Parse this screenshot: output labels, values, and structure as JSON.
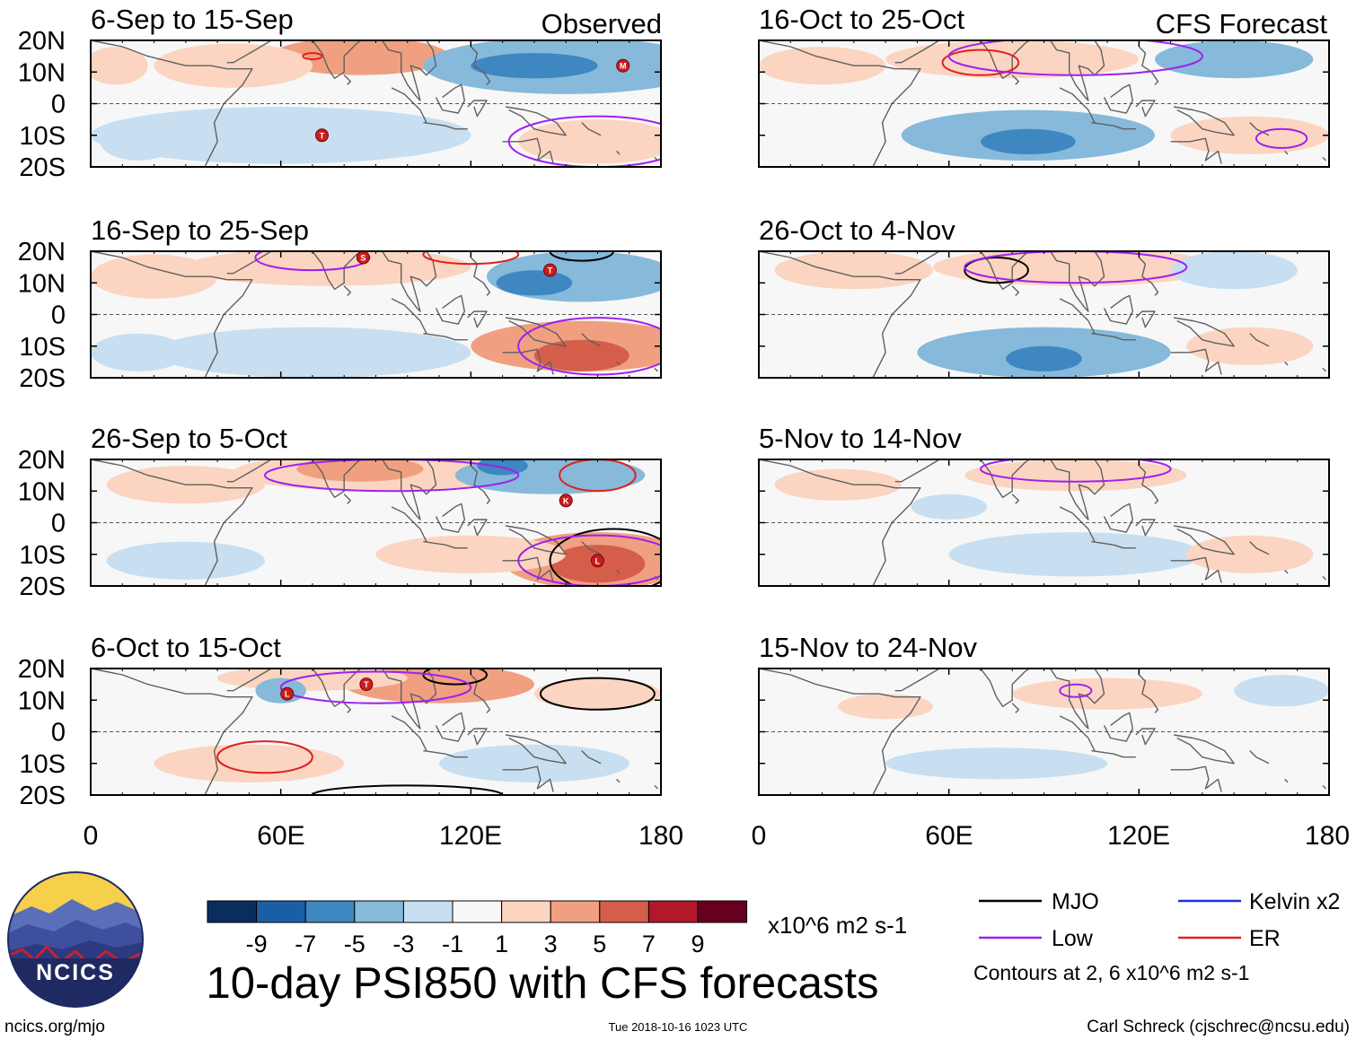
{
  "title": "10-day PSI850 with CFS forecasts",
  "source_url": "ncics.org/mjo",
  "logo_text": "NCICS",
  "timestamp": "Tue 2018-10-16 1023 UTC",
  "credit": "Carl Schreck (cjschrec@ncsu.edu)",
  "column_headers": {
    "observed": "Observed",
    "forecast": "CFS Forecast"
  },
  "colorbar": {
    "tick_labels": [
      "-9",
      "-7",
      "-5",
      "-3",
      "-1",
      "1",
      "3",
      "5",
      "7",
      "9"
    ],
    "colors": [
      "#0a2d5e",
      "#1a5ea6",
      "#3e87c0",
      "#86b9da",
      "#c7dff0",
      "#f7f7f7",
      "#fbd5c1",
      "#f0a080",
      "#d55e4b",
      "#b2182b",
      "#67001f"
    ],
    "units": "x10^6 m2 s-1"
  },
  "legend": {
    "items": [
      {
        "label": "MJO",
        "color": "#000000"
      },
      {
        "label": "Kelvin x2",
        "color": "#1c2fd6"
      },
      {
        "label": "Low",
        "color": "#a020f0"
      },
      {
        "label": "ER",
        "color": "#e0201e"
      }
    ],
    "contour_note": "Contours at 2, 6 x10^6 m2 s-1"
  },
  "chart_data": {
    "type": "heatmap",
    "variable": "PSI850",
    "xlim": [
      0,
      180
    ],
    "ylim": [
      -20,
      20
    ],
    "x_ticks": [
      0,
      60,
      120,
      180
    ],
    "x_tick_labels": [
      "0",
      "60E",
      "120E",
      "180"
    ],
    "y_ticks": [
      20,
      10,
      0,
      -10,
      -20
    ],
    "y_tick_labels": [
      "20N",
      "10N",
      "0",
      "10S",
      "20S"
    ],
    "panels": [
      {
        "id": "p1",
        "title": "6-Sep to 15-Sep",
        "type": "observed",
        "column": 0,
        "row": 0,
        "anomalies": [
          {
            "lon": 85,
            "lat": 15,
            "rx": 28,
            "ry": 6,
            "level": 7
          },
          {
            "lon": 45,
            "lat": 12,
            "rx": 25,
            "ry": 7,
            "level": 6
          },
          {
            "lon": 8,
            "lat": 12,
            "rx": 10,
            "ry": 6,
            "level": 6
          },
          {
            "lon": 150,
            "lat": 12,
            "rx": 45,
            "ry": 9,
            "level": 3
          },
          {
            "lon": 140,
            "lat": 12,
            "rx": 20,
            "ry": 4,
            "level": 2
          },
          {
            "lon": 60,
            "lat": -10,
            "rx": 60,
            "ry": 9,
            "level": 4
          },
          {
            "lon": 160,
            "lat": -12,
            "rx": 25,
            "ry": 7,
            "level": 6
          },
          {
            "lon": 15,
            "lat": -12,
            "rx": 12,
            "ry": 6,
            "level": 4
          }
        ],
        "contours": [
          {
            "kind": "ER",
            "lon": 70,
            "lat": 15,
            "rx": 3,
            "ry": 1
          },
          {
            "kind": "Low",
            "lon": 160,
            "lat": -12,
            "rx": 28,
            "ry": 8
          }
        ],
        "storms": [
          {
            "lon": 73,
            "lat": -10,
            "label": "T"
          },
          {
            "lon": 168,
            "lat": 12,
            "label": "M"
          }
        ]
      },
      {
        "id": "p2",
        "title": "16-Sep to 25-Sep",
        "type": "observed",
        "column": 0,
        "row": 1,
        "anomalies": [
          {
            "lon": 75,
            "lat": 15,
            "rx": 45,
            "ry": 6,
            "level": 6
          },
          {
            "lon": 20,
            "lat": 12,
            "rx": 20,
            "ry": 7,
            "level": 6
          },
          {
            "lon": 155,
            "lat": 12,
            "rx": 30,
            "ry": 8,
            "level": 3
          },
          {
            "lon": 140,
            "lat": 10,
            "rx": 12,
            "ry": 4,
            "level": 2
          },
          {
            "lon": 155,
            "lat": -10,
            "rx": 35,
            "ry": 8,
            "level": 7
          },
          {
            "lon": 155,
            "lat": -13,
            "rx": 15,
            "ry": 5,
            "level": 8
          },
          {
            "lon": 70,
            "lat": -12,
            "rx": 50,
            "ry": 8,
            "level": 4
          },
          {
            "lon": 15,
            "lat": -12,
            "rx": 15,
            "ry": 6,
            "level": 4
          }
        ],
        "contours": [
          {
            "kind": "ER",
            "lon": 120,
            "lat": 19,
            "rx": 15,
            "ry": 3
          },
          {
            "kind": "MJO",
            "lon": 155,
            "lat": 20,
            "rx": 10,
            "ry": 3
          },
          {
            "kind": "Low",
            "lon": 70,
            "lat": 18,
            "rx": 18,
            "ry": 4
          },
          {
            "kind": "Low",
            "lon": 160,
            "lat": -10,
            "rx": 25,
            "ry": 9
          }
        ],
        "storms": [
          {
            "lon": 86,
            "lat": 18,
            "label": "S"
          },
          {
            "lon": 145,
            "lat": 14,
            "label": "T"
          }
        ]
      },
      {
        "id": "p3",
        "title": "26-Sep to 5-Oct",
        "type": "observed",
        "column": 0,
        "row": 2,
        "anomalies": [
          {
            "lon": 90,
            "lat": 16,
            "rx": 45,
            "ry": 6,
            "level": 6
          },
          {
            "lon": 85,
            "lat": 17,
            "rx": 20,
            "ry": 4,
            "level": 7
          },
          {
            "lon": 30,
            "lat": 12,
            "rx": 25,
            "ry": 6,
            "level": 6
          },
          {
            "lon": 145,
            "lat": 15,
            "rx": 30,
            "ry": 6,
            "level": 3
          },
          {
            "lon": 130,
            "lat": 18,
            "rx": 8,
            "ry": 3,
            "level": 2
          },
          {
            "lon": 160,
            "lat": -12,
            "rx": 30,
            "ry": 9,
            "level": 7
          },
          {
            "lon": 160,
            "lat": -13,
            "rx": 15,
            "ry": 6,
            "level": 8
          },
          {
            "lon": 120,
            "lat": -10,
            "rx": 30,
            "ry": 6,
            "level": 6
          },
          {
            "lon": 30,
            "lat": -12,
            "rx": 25,
            "ry": 6,
            "level": 4
          }
        ],
        "contours": [
          {
            "kind": "Low",
            "lon": 95,
            "lat": 15,
            "rx": 40,
            "ry": 5
          },
          {
            "kind": "ER",
            "lon": 160,
            "lat": 15,
            "rx": 12,
            "ry": 5
          },
          {
            "kind": "MJO",
            "lon": 165,
            "lat": -12,
            "rx": 20,
            "ry": 10
          },
          {
            "kind": "Low",
            "lon": 160,
            "lat": -12,
            "rx": 25,
            "ry": 8
          }
        ],
        "storms": [
          {
            "lon": 150,
            "lat": 7,
            "label": "K"
          },
          {
            "lon": 160,
            "lat": -12,
            "label": "L"
          }
        ]
      },
      {
        "id": "p4",
        "title": "6-Oct to 15-Oct",
        "type": "observed",
        "column": 0,
        "row": 3,
        "anomalies": [
          {
            "lon": 110,
            "lat": 15,
            "rx": 30,
            "ry": 6,
            "level": 7
          },
          {
            "lon": 70,
            "lat": 17,
            "rx": 30,
            "ry": 4,
            "level": 6
          },
          {
            "lon": 60,
            "lat": 13,
            "rx": 8,
            "ry": 4,
            "level": 3
          },
          {
            "lon": 50,
            "lat": -10,
            "rx": 30,
            "ry": 6,
            "level": 6
          },
          {
            "lon": 140,
            "lat": -10,
            "rx": 30,
            "ry": 6,
            "level": 4
          },
          {
            "lon": 160,
            "lat": 12,
            "rx": 20,
            "ry": 5,
            "level": 6
          }
        ],
        "contours": [
          {
            "kind": "MJO",
            "lon": 115,
            "lat": 18,
            "rx": 10,
            "ry": 3
          },
          {
            "kind": "MJO",
            "lon": 160,
            "lat": 12,
            "rx": 18,
            "ry": 5
          },
          {
            "kind": "MJO",
            "lon": 100,
            "lat": -20,
            "rx": 30,
            "ry": 3
          },
          {
            "kind": "ER",
            "lon": 55,
            "lat": -8,
            "rx": 15,
            "ry": 5
          },
          {
            "kind": "Low",
            "lon": 90,
            "lat": 14,
            "rx": 30,
            "ry": 5
          }
        ],
        "storms": [
          {
            "lon": 62,
            "lat": 12,
            "label": "L"
          },
          {
            "lon": 87,
            "lat": 15,
            "label": "T"
          }
        ]
      },
      {
        "id": "p5",
        "title": "16-Oct to 25-Oct",
        "type": "forecast",
        "column": 1,
        "row": 0,
        "anomalies": [
          {
            "lon": 80,
            "lat": 14,
            "rx": 40,
            "ry": 6,
            "level": 6
          },
          {
            "lon": 20,
            "lat": 12,
            "rx": 20,
            "ry": 6,
            "level": 6
          },
          {
            "lon": 150,
            "lat": 14,
            "rx": 25,
            "ry": 6,
            "level": 3
          },
          {
            "lon": 85,
            "lat": -10,
            "rx": 40,
            "ry": 8,
            "level": 3
          },
          {
            "lon": 85,
            "lat": -12,
            "rx": 15,
            "ry": 4,
            "level": 2
          },
          {
            "lon": 155,
            "lat": -10,
            "rx": 25,
            "ry": 6,
            "level": 6
          }
        ],
        "contours": [
          {
            "kind": "ER",
            "lon": 70,
            "lat": 13,
            "rx": 12,
            "ry": 4
          },
          {
            "kind": "Low",
            "lon": 100,
            "lat": 15,
            "rx": 40,
            "ry": 6
          },
          {
            "kind": "Low",
            "lon": 165,
            "lat": -11,
            "rx": 8,
            "ry": 3
          }
        ],
        "storms": []
      },
      {
        "id": "p6",
        "title": "26-Oct to 4-Nov",
        "type": "forecast",
        "column": 1,
        "row": 1,
        "anomalies": [
          {
            "lon": 100,
            "lat": 15,
            "rx": 45,
            "ry": 6,
            "level": 6
          },
          {
            "lon": 30,
            "lat": 14,
            "rx": 25,
            "ry": 6,
            "level": 6
          },
          {
            "lon": 90,
            "lat": -12,
            "rx": 40,
            "ry": 8,
            "level": 3
          },
          {
            "lon": 90,
            "lat": -14,
            "rx": 12,
            "ry": 4,
            "level": 2
          },
          {
            "lon": 150,
            "lat": 14,
            "rx": 20,
            "ry": 6,
            "level": 4
          },
          {
            "lon": 155,
            "lat": -10,
            "rx": 20,
            "ry": 6,
            "level": 6
          }
        ],
        "contours": [
          {
            "kind": "MJO",
            "lon": 75,
            "lat": 14,
            "rx": 10,
            "ry": 4
          },
          {
            "kind": "Low",
            "lon": 100,
            "lat": 15,
            "rx": 35,
            "ry": 5
          }
        ],
        "storms": []
      },
      {
        "id": "p7",
        "title": "5-Nov to 14-Nov",
        "type": "forecast",
        "column": 1,
        "row": 2,
        "anomalies": [
          {
            "lon": 100,
            "lat": 15,
            "rx": 35,
            "ry": 5,
            "level": 6
          },
          {
            "lon": 25,
            "lat": 12,
            "rx": 20,
            "ry": 5,
            "level": 6
          },
          {
            "lon": 100,
            "lat": -10,
            "rx": 40,
            "ry": 7,
            "level": 4
          },
          {
            "lon": 60,
            "lat": 5,
            "rx": 12,
            "ry": 4,
            "level": 4
          },
          {
            "lon": 155,
            "lat": -10,
            "rx": 20,
            "ry": 6,
            "level": 6
          }
        ],
        "contours": [
          {
            "kind": "Low",
            "lon": 100,
            "lat": 17,
            "rx": 30,
            "ry": 4
          }
        ],
        "storms": []
      },
      {
        "id": "p8",
        "title": "15-Nov to 24-Nov",
        "type": "forecast",
        "column": 1,
        "row": 3,
        "anomalies": [
          {
            "lon": 110,
            "lat": 12,
            "rx": 30,
            "ry": 5,
            "level": 6
          },
          {
            "lon": 75,
            "lat": -10,
            "rx": 35,
            "ry": 5,
            "level": 4
          },
          {
            "lon": 165,
            "lat": 13,
            "rx": 15,
            "ry": 5,
            "level": 4
          },
          {
            "lon": 40,
            "lat": 8,
            "rx": 15,
            "ry": 4,
            "level": 6
          }
        ],
        "contours": [
          {
            "kind": "Low",
            "lon": 100,
            "lat": 13,
            "rx": 5,
            "ry": 2
          }
        ],
        "storms": []
      }
    ]
  }
}
